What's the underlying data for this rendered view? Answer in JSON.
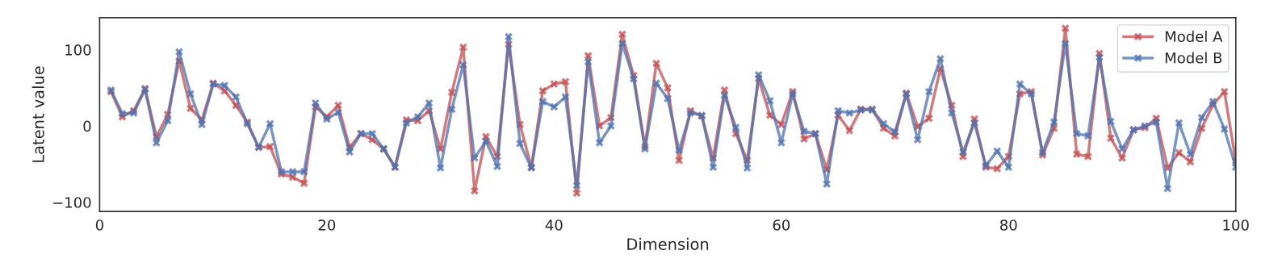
{
  "chart_data": {
    "type": "line",
    "xlabel": "Dimension",
    "ylabel": "Latent value",
    "x": [
      1,
      2,
      3,
      4,
      5,
      6,
      7,
      8,
      9,
      10,
      11,
      12,
      13,
      14,
      15,
      16,
      17,
      18,
      19,
      20,
      21,
      22,
      23,
      24,
      25,
      26,
      27,
      28,
      29,
      30,
      31,
      32,
      33,
      34,
      35,
      36,
      37,
      38,
      39,
      40,
      41,
      42,
      43,
      44,
      45,
      46,
      47,
      48,
      49,
      50,
      51,
      52,
      53,
      54,
      55,
      56,
      57,
      58,
      59,
      60,
      61,
      62,
      63,
      64,
      65,
      66,
      67,
      68,
      69,
      70,
      71,
      72,
      73,
      74,
      75,
      76,
      77,
      78,
      79,
      80,
      81,
      82,
      83,
      84,
      85,
      86,
      87,
      88,
      89,
      90,
      91,
      92,
      93,
      94,
      95,
      96,
      97,
      98,
      99,
      100
    ],
    "series": [
      {
        "name": "Model A",
        "color": "#c44e52",
        "values": [
          45,
          12,
          20,
          49,
          -14,
          15,
          85,
          23,
          8,
          56,
          46,
          27,
          5,
          -28,
          -27,
          -63,
          -67,
          -75,
          25,
          12,
          27,
          -28,
          -10,
          -18,
          -30,
          -54,
          8,
          7,
          20,
          -30,
          44,
          103,
          -85,
          -14,
          -40,
          107,
          2,
          -54,
          46,
          55,
          58,
          -88,
          92,
          0,
          11,
          120,
          66,
          -27,
          82,
          50,
          -45,
          20,
          13,
          -42,
          47,
          -10,
          -45,
          62,
          14,
          2,
          45,
          -17,
          -10,
          -57,
          14,
          -6,
          22,
          22,
          -3,
          -13,
          43,
          -1,
          10,
          75,
          27,
          -40,
          9,
          -54,
          -56,
          -40,
          42,
          45,
          -38,
          -3,
          128,
          -37,
          -40,
          95,
          -16,
          -42,
          -5,
          -2,
          10,
          -55,
          -35,
          -47,
          -3,
          28,
          45,
          -46
        ]
      },
      {
        "name": "Model B",
        "color": "#4c72b0",
        "values": [
          47,
          16,
          17,
          48,
          -22,
          7,
          97,
          42,
          2,
          55,
          53,
          38,
          3,
          -28,
          3,
          -60,
          -60,
          -60,
          30,
          9,
          18,
          -34,
          -10,
          -10,
          -30,
          -54,
          4,
          12,
          30,
          -55,
          22,
          80,
          -42,
          -20,
          -53,
          117,
          -23,
          -55,
          32,
          25,
          38,
          -78,
          84,
          -22,
          0,
          108,
          62,
          -30,
          56,
          36,
          -32,
          17,
          14,
          -54,
          40,
          -2,
          -55,
          67,
          33,
          -22,
          42,
          -7,
          -10,
          -76,
          20,
          17,
          21,
          21,
          3,
          -8,
          42,
          -18,
          45,
          88,
          17,
          -34,
          4,
          -52,
          -33,
          -54,
          55,
          42,
          -35,
          5,
          108,
          -10,
          -13,
          90,
          6,
          -30,
          -5,
          0,
          5,
          -82,
          4,
          -37,
          11,
          32,
          -4,
          -54
        ]
      }
    ],
    "xlim": [
      0,
      100
    ],
    "xticks": [
      0,
      20,
      40,
      60,
      80,
      100
    ],
    "ylim": [
      -112,
      142
    ],
    "yticks": [
      {
        "value": -100,
        "label": "−100"
      },
      0,
      100
    ],
    "marker": "cross",
    "line_style": "solid",
    "grid": false,
    "legend": "top right"
  }
}
